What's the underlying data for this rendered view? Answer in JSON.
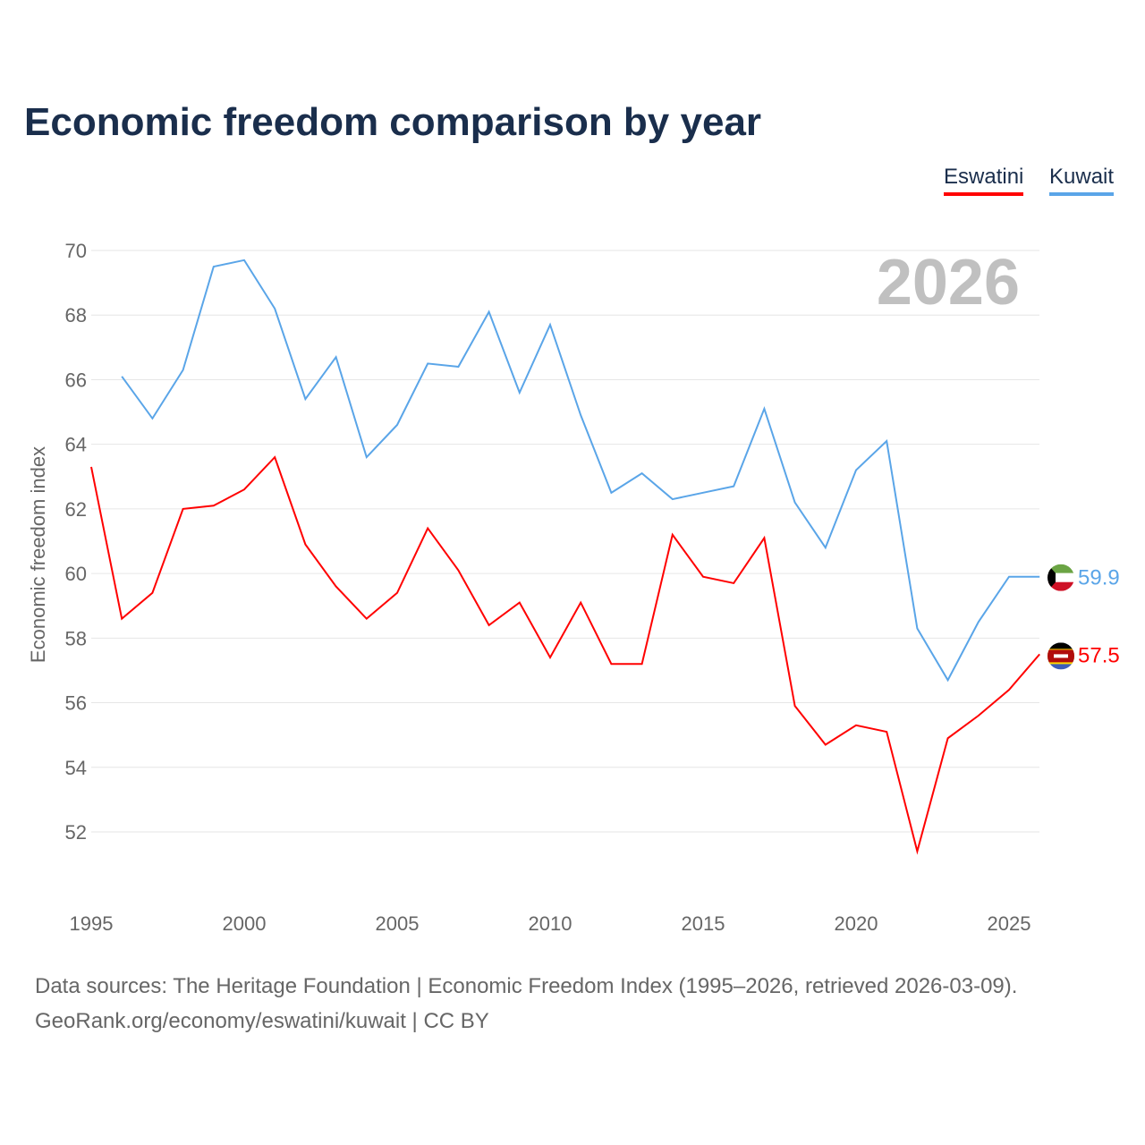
{
  "title": "Economic freedom comparison by year",
  "footer": {
    "line1": "Data sources: The Heritage Foundation | Economic Freedom Index (1995–2026, retrieved 2026-03-09).",
    "line2": "GeoRank.org/economy/eswatini/kuwait | CC BY"
  },
  "chart_data": {
    "type": "line",
    "title": "Economic freedom comparison by year",
    "xlabel": "",
    "ylabel": "Economic freedom index",
    "year_label": "2026",
    "xlim": [
      1995,
      2026
    ],
    "ylim": [
      50,
      70.5
    ],
    "xticks": [
      1995,
      2000,
      2005,
      2010,
      2015,
      2020,
      2025
    ],
    "yticks": [
      52,
      54,
      56,
      58,
      60,
      62,
      64,
      66,
      68,
      70
    ],
    "legend_placement": "top-right",
    "series": [
      {
        "name": "Eswatini",
        "color": "#ff0000",
        "end_label": "57.5",
        "x": [
          1995,
          1996,
          1997,
          1998,
          1999,
          2000,
          2001,
          2002,
          2003,
          2004,
          2005,
          2006,
          2007,
          2008,
          2009,
          2010,
          2011,
          2012,
          2013,
          2014,
          2015,
          2016,
          2017,
          2018,
          2019,
          2020,
          2021,
          2022,
          2023,
          2024,
          2025,
          2026
        ],
        "values": [
          63.3,
          58.6,
          59.4,
          62.0,
          62.1,
          62.6,
          63.6,
          60.9,
          59.6,
          58.6,
          59.4,
          61.4,
          60.1,
          58.4,
          59.1,
          57.4,
          59.1,
          57.2,
          57.2,
          61.2,
          59.9,
          59.7,
          61.1,
          55.9,
          54.7,
          55.3,
          55.1,
          51.4,
          54.9,
          55.6,
          56.4,
          57.5
        ]
      },
      {
        "name": "Kuwait",
        "color": "#5aa5e8",
        "end_label": "59.9",
        "x": [
          1996,
          1997,
          1998,
          1999,
          2000,
          2001,
          2002,
          2003,
          2004,
          2005,
          2006,
          2007,
          2008,
          2009,
          2010,
          2011,
          2012,
          2013,
          2014,
          2015,
          2016,
          2017,
          2018,
          2019,
          2020,
          2021,
          2022,
          2023,
          2024,
          2025,
          2026
        ],
        "values": [
          66.1,
          64.8,
          66.3,
          69.5,
          69.7,
          68.2,
          65.4,
          66.7,
          63.6,
          64.6,
          66.5,
          66.4,
          68.1,
          65.6,
          67.7,
          64.9,
          62.5,
          63.1,
          62.3,
          62.5,
          62.7,
          65.1,
          62.2,
          60.8,
          63.2,
          64.1,
          58.3,
          56.7,
          58.5,
          59.9,
          59.9
        ]
      }
    ]
  }
}
